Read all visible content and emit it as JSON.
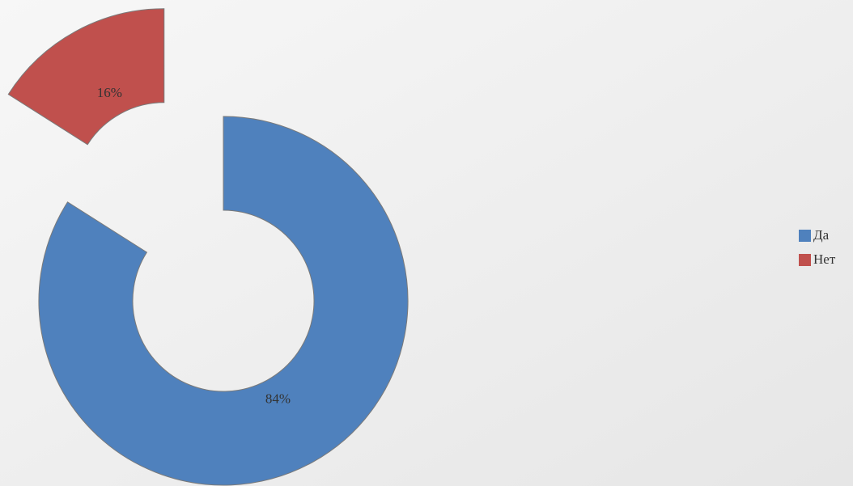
{
  "chart_data": {
    "type": "pie",
    "donut": true,
    "categories": [
      "Да",
      "Нет"
    ],
    "values": [
      84,
      16
    ],
    "value_labels": [
      "84%",
      "16%"
    ],
    "colors": [
      "#4f81bd",
      "#c0504d"
    ]
  }
}
